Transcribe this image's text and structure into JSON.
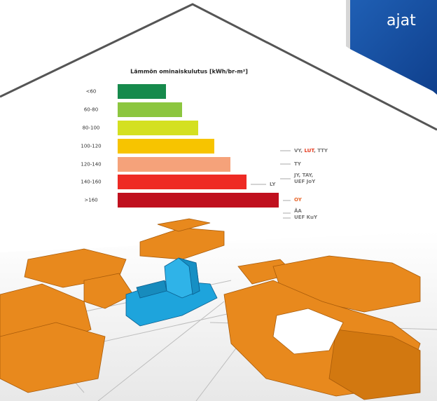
{
  "slide_text": "ajat",
  "chart": {
    "title": "Lämmön ominaiskulutus [kWh/br-m²]",
    "categories": [
      "<60",
      "60-80",
      "80-100",
      "100-120",
      "120-140",
      "140-160",
      ">160"
    ],
    "annotations": {
      "first": {
        "prefix": "VY, ",
        "highlight": "LUT",
        "suffix": ", TTY"
      },
      "ty": "TY",
      "jy_line1": "JY, TAY,",
      "jy_line2": "UEF JoY",
      "ly": "LY",
      "oy": "OY",
      "aa": "ÅA",
      "uef_kuy": "UEF KuY"
    }
  }
}
